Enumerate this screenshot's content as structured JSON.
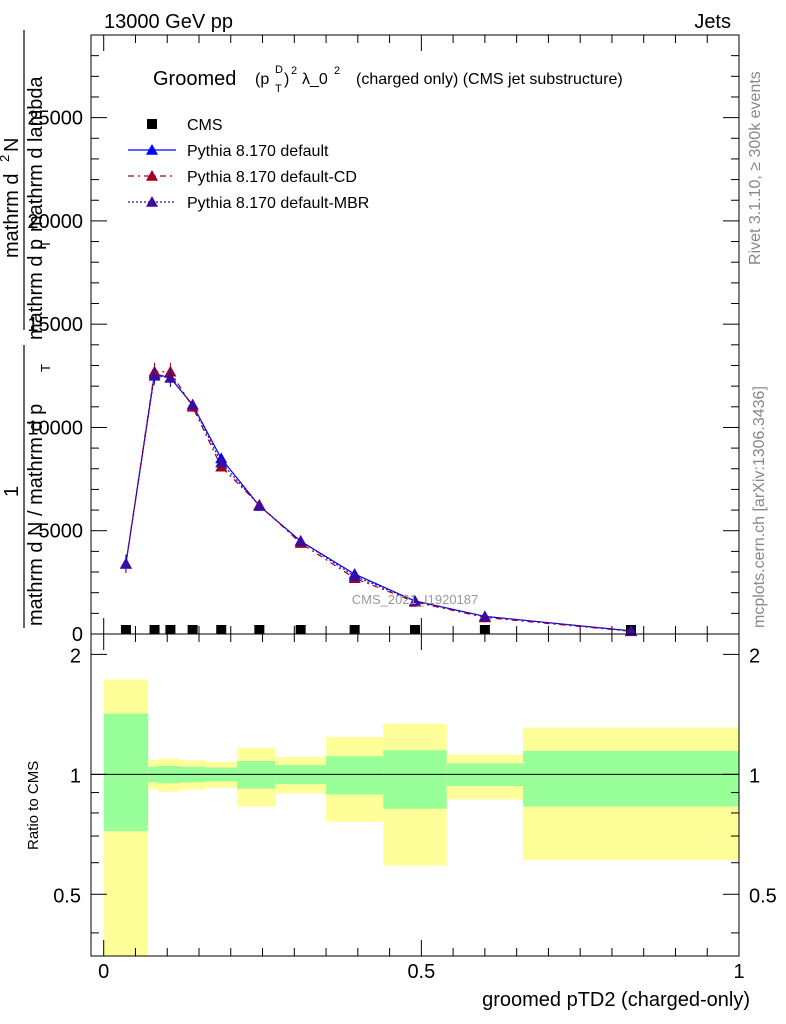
{
  "header": {
    "left": "13000 GeV pp",
    "right": "Jets"
  },
  "side_labels": {
    "rivet": "Rivet 3.1.10, ≥ 300k events",
    "mcplots": "mcplots.cern.ch [arXiv:1306.3436]"
  },
  "watermark": "CMS_2021_I1920187",
  "title": {
    "prefix": "Groomed",
    "p": "(p",
    "sup_d": "D",
    "sub_t": "T",
    "close": ")",
    "sup_2": "2",
    "lambda": "λ_0",
    "sup_lambda": "2",
    "suffix": "(charged only) (CMS jet substructure)"
  },
  "ylabel_upper": {
    "line1_a": "mathrm d",
    "line1_b": "2",
    "line1_c": "N",
    "line2_a": "mathrm d p",
    "line2_b": "T",
    "line2_c": "mathrm d lambda",
    "frac_a": "1",
    "frac_b": "mathrm d N / mathrm d p",
    "frac_c": "T"
  },
  "chart_data": [
    {
      "type": "line",
      "panel": "main",
      "title": "Groomed (p_T^D)^2 λ_0^2 (charged only) (CMS jet substructure)",
      "xlabel": "groomed pTD2 (charged-only)",
      "ylabel": "1/(mathrm dN/mathrm dp_T) mathrm d^2N/(mathrm dp_T mathrm d lambda)",
      "xlim": [
        -0.02,
        1.0
      ],
      "ylim": [
        0,
        29000
      ],
      "yticks": [
        0,
        5000,
        10000,
        15000,
        20000,
        25000
      ],
      "ytick_labels": [
        "0",
        "5000",
        "10000",
        "15000",
        "20000",
        "25000"
      ],
      "legend": [
        "CMS",
        "Pythia 8.170 default",
        "Pythia 8.170 default-CD",
        "Pythia 8.170 default-MBR"
      ],
      "x": [
        0.035,
        0.08,
        0.105,
        0.14,
        0.185,
        0.245,
        0.31,
        0.395,
        0.49,
        0.6,
        0.83
      ],
      "series": [
        {
          "name": "CMS",
          "values": [
            0,
            0,
            0,
            0,
            0,
            0,
            0,
            0,
            0,
            0,
            0
          ],
          "color": "#000000"
        },
        {
          "name": "Pythia 8.170 default",
          "values": [
            3400,
            12600,
            12400,
            11100,
            8500,
            6200,
            4500,
            2900,
            1600,
            850,
            150
          ],
          "color": "#0000ff"
        },
        {
          "name": "Pythia 8.170 default-CD",
          "values": [
            3400,
            12700,
            12700,
            11000,
            8100,
            6250,
            4400,
            2700,
            1550,
            800,
            130
          ],
          "color": "#a00020"
        },
        {
          "name": "Pythia 8.170 default-MBR",
          "values": [
            3400,
            12500,
            12400,
            11100,
            8300,
            6200,
            4500,
            2800,
            1600,
            850,
            150
          ],
          "color": "#3a0da0"
        }
      ]
    },
    {
      "type": "area",
      "panel": "ratio",
      "ylabel": "Ratio to CMS",
      "xlabel": "groomed pTD2 (charged-only)",
      "xlim": [
        -0.02,
        1.0
      ],
      "ylim": [
        0.35,
        2.25
      ],
      "yticks": [
        0.5,
        1,
        2
      ],
      "ytick_labels": [
        "0.5",
        "1",
        "2"
      ],
      "xticks": [
        0,
        0.5,
        1
      ],
      "xtick_labels": [
        "0",
        "0.5",
        "1"
      ],
      "bins": [
        {
          "x0": 0.0,
          "x1": 0.07,
          "inner": [
            0.72,
            1.42
          ],
          "outer": [
            0.35,
            1.73
          ]
        },
        {
          "x0": 0.07,
          "x1": 0.085,
          "inner": [
            0.955,
            1.045
          ],
          "outer": [
            0.92,
            1.085
          ]
        },
        {
          "x0": 0.085,
          "x1": 0.12,
          "inner": [
            0.95,
            1.05
          ],
          "outer": [
            0.905,
            1.095
          ]
        },
        {
          "x0": 0.12,
          "x1": 0.16,
          "inner": [
            0.955,
            1.045
          ],
          "outer": [
            0.915,
            1.085
          ]
        },
        {
          "x0": 0.16,
          "x1": 0.21,
          "inner": [
            0.96,
            1.04
          ],
          "outer": [
            0.925,
            1.075
          ]
        },
        {
          "x0": 0.21,
          "x1": 0.27,
          "inner": [
            0.92,
            1.08
          ],
          "outer": [
            0.83,
            1.165
          ]
        },
        {
          "x0": 0.27,
          "x1": 0.35,
          "inner": [
            0.945,
            1.055
          ],
          "outer": [
            0.895,
            1.105
          ]
        },
        {
          "x0": 0.35,
          "x1": 0.44,
          "inner": [
            0.89,
            1.11
          ],
          "outer": [
            0.76,
            1.24
          ]
        },
        {
          "x0": 0.44,
          "x1": 0.54,
          "inner": [
            0.82,
            1.15
          ],
          "outer": [
            0.59,
            1.34
          ]
        },
        {
          "x0": 0.54,
          "x1": 0.66,
          "inner": [
            0.935,
            1.065
          ],
          "outer": [
            0.865,
            1.12
          ]
        },
        {
          "x0": 0.66,
          "x1": 1.0,
          "inner": [
            0.83,
            1.145
          ],
          "outer": [
            0.61,
            1.31
          ]
        }
      ]
    }
  ]
}
